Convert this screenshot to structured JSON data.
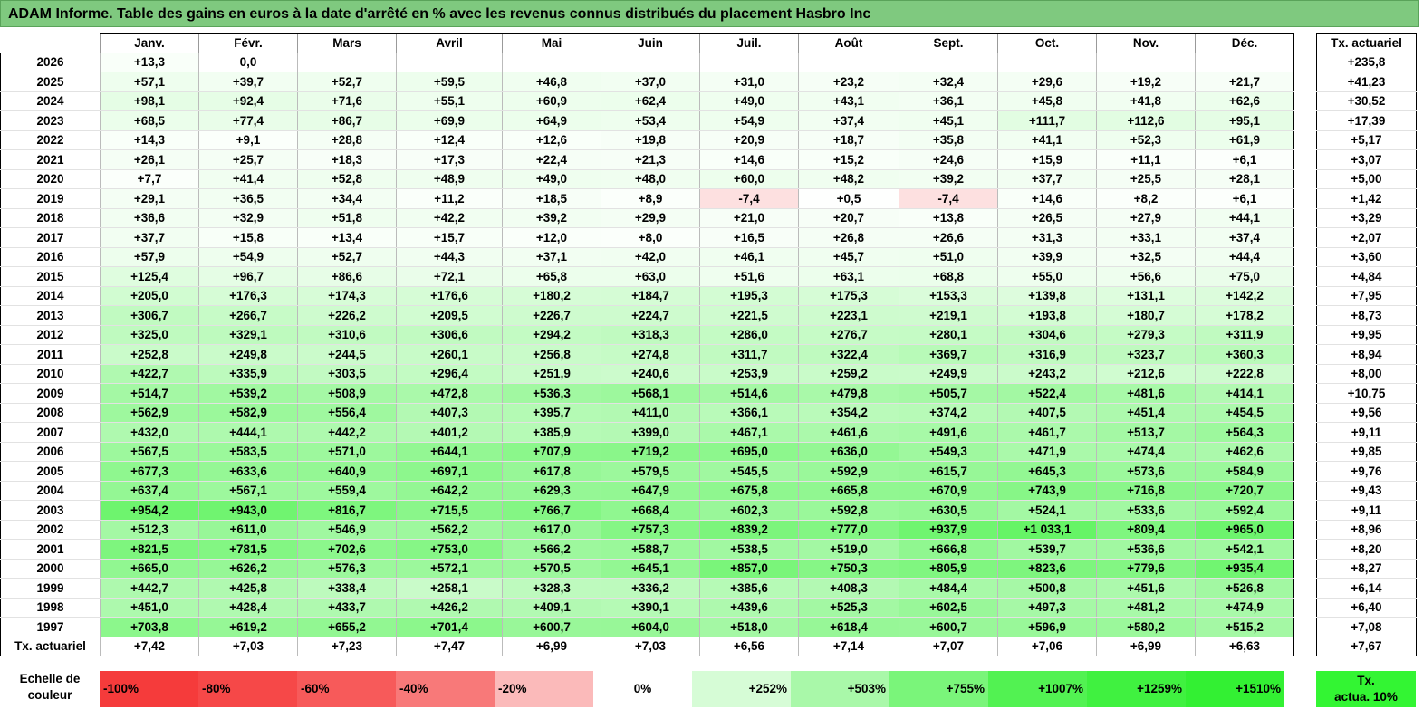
{
  "title": "ADAM Informe. Table des gains en euros à la date d'arrêté en % avec les revenus connus distribués du placement Hasbro Inc",
  "months": [
    "Janv.",
    "Févr.",
    "Mars",
    "Avril",
    "Mai",
    "Juin",
    "Juil.",
    "Août",
    "Sept.",
    "Oct.",
    "Nov.",
    "Déc."
  ],
  "side_header": "Tx. actuariel",
  "rows": [
    {
      "year": "2026",
      "cells": [
        "+13,3",
        "0,0",
        "",
        "",
        "",
        "",
        "",
        "",
        "",
        "",
        "",
        ""
      ],
      "rate": "+235,8"
    },
    {
      "year": "2025",
      "cells": [
        "+57,1",
        "+39,7",
        "+52,7",
        "+59,5",
        "+46,8",
        "+37,0",
        "+31,0",
        "+23,2",
        "+32,4",
        "+29,6",
        "+19,2",
        "+21,7"
      ],
      "rate": "+41,23"
    },
    {
      "year": "2024",
      "cells": [
        "+98,1",
        "+92,4",
        "+71,6",
        "+55,1",
        "+60,9",
        "+62,4",
        "+49,0",
        "+43,1",
        "+36,1",
        "+45,8",
        "+41,8",
        "+62,6"
      ],
      "rate": "+30,52"
    },
    {
      "year": "2023",
      "cells": [
        "+68,5",
        "+77,4",
        "+86,7",
        "+69,9",
        "+64,9",
        "+53,4",
        "+54,9",
        "+37,4",
        "+45,1",
        "+111,7",
        "+112,6",
        "+95,1"
      ],
      "rate": "+17,39"
    },
    {
      "year": "2022",
      "cells": [
        "+14,3",
        "+9,1",
        "+28,8",
        "+12,4",
        "+12,6",
        "+19,8",
        "+20,9",
        "+18,7",
        "+35,8",
        "+41,1",
        "+52,3",
        "+61,9"
      ],
      "rate": "+5,17"
    },
    {
      "year": "2021",
      "cells": [
        "+26,1",
        "+25,7",
        "+18,3",
        "+17,3",
        "+22,4",
        "+21,3",
        "+14,6",
        "+15,2",
        "+24,6",
        "+15,9",
        "+11,1",
        "+6,1"
      ],
      "rate": "+3,07"
    },
    {
      "year": "2020",
      "cells": [
        "+7,7",
        "+41,4",
        "+52,8",
        "+48,9",
        "+49,0",
        "+48,0",
        "+60,0",
        "+48,2",
        "+39,2",
        "+37,7",
        "+25,5",
        "+28,1"
      ],
      "rate": "+5,00"
    },
    {
      "year": "2019",
      "cells": [
        "+29,1",
        "+36,5",
        "+34,4",
        "+11,2",
        "+18,5",
        "+8,9",
        "-7,4",
        "+0,5",
        "-7,4",
        "+14,6",
        "+8,2",
        "+6,1"
      ],
      "rate": "+1,42"
    },
    {
      "year": "2018",
      "cells": [
        "+36,6",
        "+32,9",
        "+51,8",
        "+42,2",
        "+39,2",
        "+29,9",
        "+21,0",
        "+20,7",
        "+13,8",
        "+26,5",
        "+27,9",
        "+44,1"
      ],
      "rate": "+3,29"
    },
    {
      "year": "2017",
      "cells": [
        "+37,7",
        "+15,8",
        "+13,4",
        "+15,7",
        "+12,0",
        "+8,0",
        "+16,5",
        "+26,8",
        "+26,6",
        "+31,3",
        "+33,1",
        "+37,4"
      ],
      "rate": "+2,07"
    },
    {
      "year": "2016",
      "cells": [
        "+57,9",
        "+54,9",
        "+52,7",
        "+44,3",
        "+37,1",
        "+42,0",
        "+46,1",
        "+45,7",
        "+51,0",
        "+39,9",
        "+32,5",
        "+44,4"
      ],
      "rate": "+3,60"
    },
    {
      "year": "2015",
      "cells": [
        "+125,4",
        "+96,7",
        "+86,6",
        "+72,1",
        "+65,8",
        "+63,0",
        "+51,6",
        "+63,1",
        "+68,8",
        "+55,0",
        "+56,6",
        "+75,0"
      ],
      "rate": "+4,84"
    },
    {
      "year": "2014",
      "cells": [
        "+205,0",
        "+176,3",
        "+174,3",
        "+176,6",
        "+180,2",
        "+184,7",
        "+195,3",
        "+175,3",
        "+153,3",
        "+139,8",
        "+131,1",
        "+142,2"
      ],
      "rate": "+7,95"
    },
    {
      "year": "2013",
      "cells": [
        "+306,7",
        "+266,7",
        "+226,2",
        "+209,5",
        "+226,7",
        "+224,7",
        "+221,5",
        "+223,1",
        "+219,1",
        "+193,8",
        "+180,7",
        "+178,2"
      ],
      "rate": "+8,73"
    },
    {
      "year": "2012",
      "cells": [
        "+325,0",
        "+329,1",
        "+310,6",
        "+306,6",
        "+294,2",
        "+318,3",
        "+286,0",
        "+276,7",
        "+280,1",
        "+304,6",
        "+279,3",
        "+311,9"
      ],
      "rate": "+9,95"
    },
    {
      "year": "2011",
      "cells": [
        "+252,8",
        "+249,8",
        "+244,5",
        "+260,1",
        "+256,8",
        "+274,8",
        "+311,7",
        "+322,4",
        "+369,7",
        "+316,9",
        "+323,7",
        "+360,3"
      ],
      "rate": "+8,94"
    },
    {
      "year": "2010",
      "cells": [
        "+422,7",
        "+335,9",
        "+303,5",
        "+296,4",
        "+251,9",
        "+240,6",
        "+253,9",
        "+259,2",
        "+249,9",
        "+243,2",
        "+212,6",
        "+222,8"
      ],
      "rate": "+8,00"
    },
    {
      "year": "2009",
      "cells": [
        "+514,7",
        "+539,2",
        "+508,9",
        "+472,8",
        "+536,3",
        "+568,1",
        "+514,6",
        "+479,8",
        "+505,7",
        "+522,4",
        "+481,6",
        "+414,1"
      ],
      "rate": "+10,75"
    },
    {
      "year": "2008",
      "cells": [
        "+562,9",
        "+582,9",
        "+556,4",
        "+407,3",
        "+395,7",
        "+411,0",
        "+366,1",
        "+354,2",
        "+374,2",
        "+407,5",
        "+451,4",
        "+454,5"
      ],
      "rate": "+9,56"
    },
    {
      "year": "2007",
      "cells": [
        "+432,0",
        "+444,1",
        "+442,2",
        "+401,2",
        "+385,9",
        "+399,0",
        "+467,1",
        "+461,6",
        "+491,6",
        "+461,7",
        "+513,7",
        "+564,3"
      ],
      "rate": "+9,11"
    },
    {
      "year": "2006",
      "cells": [
        "+567,5",
        "+583,5",
        "+571,0",
        "+644,1",
        "+707,9",
        "+719,2",
        "+695,0",
        "+636,0",
        "+549,3",
        "+471,9",
        "+474,4",
        "+462,6"
      ],
      "rate": "+9,85"
    },
    {
      "year": "2005",
      "cells": [
        "+677,3",
        "+633,6",
        "+640,9",
        "+697,1",
        "+617,8",
        "+579,5",
        "+545,5",
        "+592,9",
        "+615,7",
        "+645,3",
        "+573,6",
        "+584,9"
      ],
      "rate": "+9,76"
    },
    {
      "year": "2004",
      "cells": [
        "+637,4",
        "+567,1",
        "+559,4",
        "+642,2",
        "+629,3",
        "+647,9",
        "+675,8",
        "+665,8",
        "+670,9",
        "+743,9",
        "+716,8",
        "+720,7"
      ],
      "rate": "+9,43"
    },
    {
      "year": "2003",
      "cells": [
        "+954,2",
        "+943,0",
        "+816,7",
        "+715,5",
        "+766,7",
        "+668,4",
        "+602,3",
        "+592,8",
        "+630,5",
        "+524,1",
        "+533,6",
        "+592,4"
      ],
      "rate": "+9,11"
    },
    {
      "year": "2002",
      "cells": [
        "+512,3",
        "+611,0",
        "+546,9",
        "+562,2",
        "+617,0",
        "+757,3",
        "+839,2",
        "+777,0",
        "+937,9",
        "+1 033,1",
        "+809,4",
        "+965,0"
      ],
      "rate": "+8,96"
    },
    {
      "year": "2001",
      "cells": [
        "+821,5",
        "+781,5",
        "+702,6",
        "+753,0",
        "+566,2",
        "+588,7",
        "+538,5",
        "+519,0",
        "+666,8",
        "+539,7",
        "+536,6",
        "+542,1"
      ],
      "rate": "+8,20"
    },
    {
      "year": "2000",
      "cells": [
        "+665,0",
        "+626,2",
        "+576,3",
        "+572,1",
        "+570,5",
        "+645,1",
        "+857,0",
        "+750,3",
        "+805,9",
        "+823,6",
        "+779,6",
        "+935,4"
      ],
      "rate": "+8,27"
    },
    {
      "year": "1999",
      "cells": [
        "+442,7",
        "+425,8",
        "+338,4",
        "+258,1",
        "+328,3",
        "+336,2",
        "+385,6",
        "+408,3",
        "+484,4",
        "+500,8",
        "+451,6",
        "+526,8"
      ],
      "rate": "+6,14"
    },
    {
      "year": "1998",
      "cells": [
        "+451,0",
        "+428,4",
        "+433,7",
        "+426,2",
        "+409,1",
        "+390,1",
        "+439,6",
        "+525,3",
        "+602,5",
        "+497,3",
        "+481,2",
        "+474,9"
      ],
      "rate": "+6,40"
    },
    {
      "year": "1997",
      "cells": [
        "+703,8",
        "+619,2",
        "+655,2",
        "+701,4",
        "+600,7",
        "+604,0",
        "+518,0",
        "+618,4",
        "+600,7",
        "+596,9",
        "+580,2",
        "+515,2"
      ],
      "rate": "+7,08"
    }
  ],
  "footer": {
    "label": "Tx. actuariel",
    "cells": [
      "+7,42",
      "+7,03",
      "+7,23",
      "+7,47",
      "+6,99",
      "+7,03",
      "+6,56",
      "+7,14",
      "+7,07",
      "+7,06",
      "+6,99",
      "+6,63"
    ],
    "rate": "+7,67"
  },
  "scale": {
    "label_line1": "Echelle de",
    "label_line2": "couleur",
    "steps": [
      {
        "text": "-100%",
        "color": "#f53b3b"
      },
      {
        "text": "-80%",
        "color": "#f64848"
      },
      {
        "text": "-60%",
        "color": "#f75a5a"
      },
      {
        "text": "-40%",
        "color": "#f87979"
      },
      {
        "text": "-20%",
        "color": "#fbbaba"
      },
      {
        "text": "0%",
        "color": "#ffffff"
      },
      {
        "text": "+252%",
        "color": "#d6fcd6"
      },
      {
        "text": "+503%",
        "color": "#a9f8a9"
      },
      {
        "text": "+755%",
        "color": "#7af57a"
      },
      {
        "text": "+1007%",
        "color": "#52f252"
      },
      {
        "text": "+1259%",
        "color": "#40f140"
      },
      {
        "text": "+1510%",
        "color": "#33f033"
      }
    ]
  },
  "legend": {
    "line1": "Tx.",
    "line2": "actua. 10%"
  },
  "colors": {
    "negative": "#fde0e0",
    "title_bg": "#7fc97f",
    "max_green": "#33f033"
  }
}
